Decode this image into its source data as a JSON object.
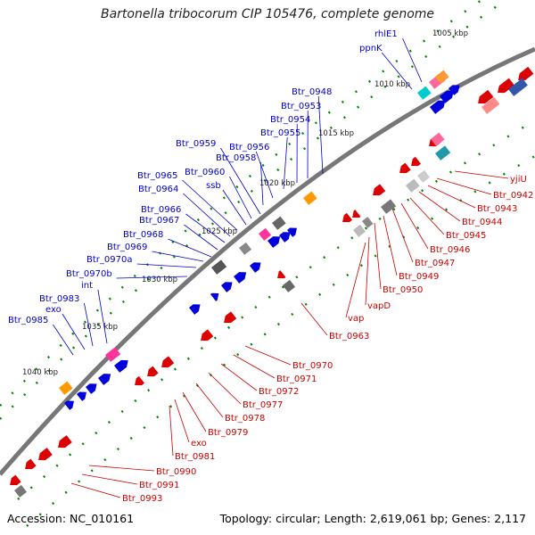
{
  "title": "Bartonella tribocorum CIP 105476, complete genome",
  "footer": {
    "accession": "Accession: NC_010161",
    "summary": "Topology: circular; Length: 2,619,061 bp; Genes: 2,117"
  },
  "colors": {
    "backbone": "#777777",
    "forward_strand": "#0000dd",
    "reverse_strand": "#dd0000",
    "tick": "#008800",
    "label_forward": "#0000cc",
    "label_reverse": "#cc0000"
  },
  "kbp_labels": [
    {
      "text": "1005 kbp"
    },
    {
      "text": "1010 kbp"
    },
    {
      "text": "1015 kbp"
    },
    {
      "text": "1020 kbp"
    },
    {
      "text": "1025 kbp"
    },
    {
      "text": "1030 kbp"
    },
    {
      "text": "1035 kbp"
    },
    {
      "text": "1040 kbp"
    }
  ],
  "forward_labels": [
    {
      "text": "rhlE1"
    },
    {
      "text": "ppnK"
    },
    {
      "text": "Btr_0948"
    },
    {
      "text": "Btr_0953"
    },
    {
      "text": "Btr_0954"
    },
    {
      "text": "Btr_0955"
    },
    {
      "text": "Btr_0956"
    },
    {
      "text": "Btr_0958"
    },
    {
      "text": "Btr_0959"
    },
    {
      "text": "Btr_0960"
    },
    {
      "text": "ssb"
    },
    {
      "text": "Btr_0965"
    },
    {
      "text": "Btr_0964"
    },
    {
      "text": "Btr_0966"
    },
    {
      "text": "Btr_0967"
    },
    {
      "text": "Btr_0968"
    },
    {
      "text": "Btr_0969"
    },
    {
      "text": "Btr_0970a"
    },
    {
      "text": "Btr_0970b"
    },
    {
      "text": "int"
    },
    {
      "text": "Btr_0983"
    },
    {
      "text": "exo"
    },
    {
      "text": "Btr_0985"
    }
  ],
  "reverse_labels": [
    {
      "text": "yjiU"
    },
    {
      "text": "Btr_0942"
    },
    {
      "text": "Btr_0943"
    },
    {
      "text": "Btr_0944"
    },
    {
      "text": "Btr_0945"
    },
    {
      "text": "Btr_0946"
    },
    {
      "text": "Btr_0947"
    },
    {
      "text": "Btr_0949"
    },
    {
      "text": "Btr_0950"
    },
    {
      "text": "vapD"
    },
    {
      "text": "vap"
    },
    {
      "text": "Btr_0963"
    },
    {
      "text": "Btr_0970"
    },
    {
      "text": "Btr_0971"
    },
    {
      "text": "Btr_0972"
    },
    {
      "text": "Btr_0977"
    },
    {
      "text": "Btr_0978"
    },
    {
      "text": "Btr_0979"
    },
    {
      "text": "exo"
    },
    {
      "text": "Btr_0981"
    },
    {
      "text": "Btr_0990"
    },
    {
      "text": "Btr_0991"
    },
    {
      "text": "Btr_0993"
    }
  ]
}
